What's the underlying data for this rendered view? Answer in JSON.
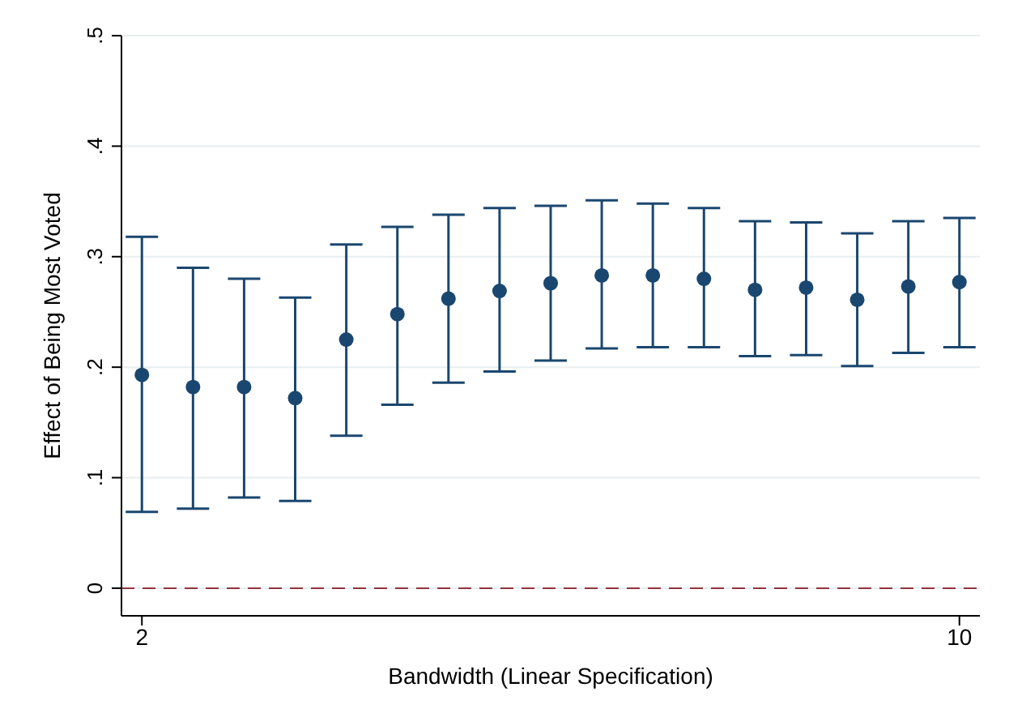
{
  "chart_data": {
    "type": "scatter",
    "xlabel": "Bandwidth (Linear Specification)",
    "ylabel": "Effect of Being Most Voted",
    "x": [
      2,
      2.5,
      3,
      3.5,
      4,
      4.5,
      5,
      5.5,
      6,
      6.5,
      7,
      7.5,
      8,
      8.5,
      9,
      9.5,
      10
    ],
    "series": [
      {
        "color": "#1a476f",
        "values": [
          0.193,
          0.182,
          0.182,
          0.172,
          0.225,
          0.248,
          0.262,
          0.269,
          0.276,
          0.283,
          0.283,
          0.28,
          0.27,
          0.272,
          0.261,
          0.273,
          0.277
        ],
        "errors": [
          [
            0.069,
            0.318
          ],
          [
            0.072,
            0.29
          ],
          [
            0.082,
            0.28
          ],
          [
            0.079,
            0.263
          ],
          [
            0.138,
            0.311
          ],
          [
            0.166,
            0.327
          ],
          [
            0.186,
            0.338
          ],
          [
            0.196,
            0.344
          ],
          [
            0.206,
            0.346
          ],
          [
            0.217,
            0.351
          ],
          [
            0.218,
            0.348
          ],
          [
            0.218,
            0.344
          ],
          [
            0.21,
            0.332
          ],
          [
            0.211,
            0.331
          ],
          [
            0.201,
            0.321
          ],
          [
            0.213,
            0.332
          ],
          [
            0.218,
            0.335
          ]
        ]
      }
    ],
    "xlim": [
      1.8,
      10.2
    ],
    "xticks": [
      2,
      10
    ],
    "ylim": [
      -0.025,
      0.5
    ],
    "yticks": [
      {
        "value": 0,
        "label": "0"
      },
      {
        "value": 0.1,
        "label": ".1"
      },
      {
        "value": 0.2,
        "label": ".2"
      },
      {
        "value": 0.3,
        "label": ".3"
      },
      {
        "value": 0.4,
        "label": ".4"
      },
      {
        "value": 0.5,
        "label": ".5"
      }
    ],
    "grid": "y",
    "marker": "circle",
    "ref_lines": [
      {
        "axis": "y",
        "value": 0,
        "color": "#90353b",
        "line_style": "dashed"
      }
    ]
  }
}
